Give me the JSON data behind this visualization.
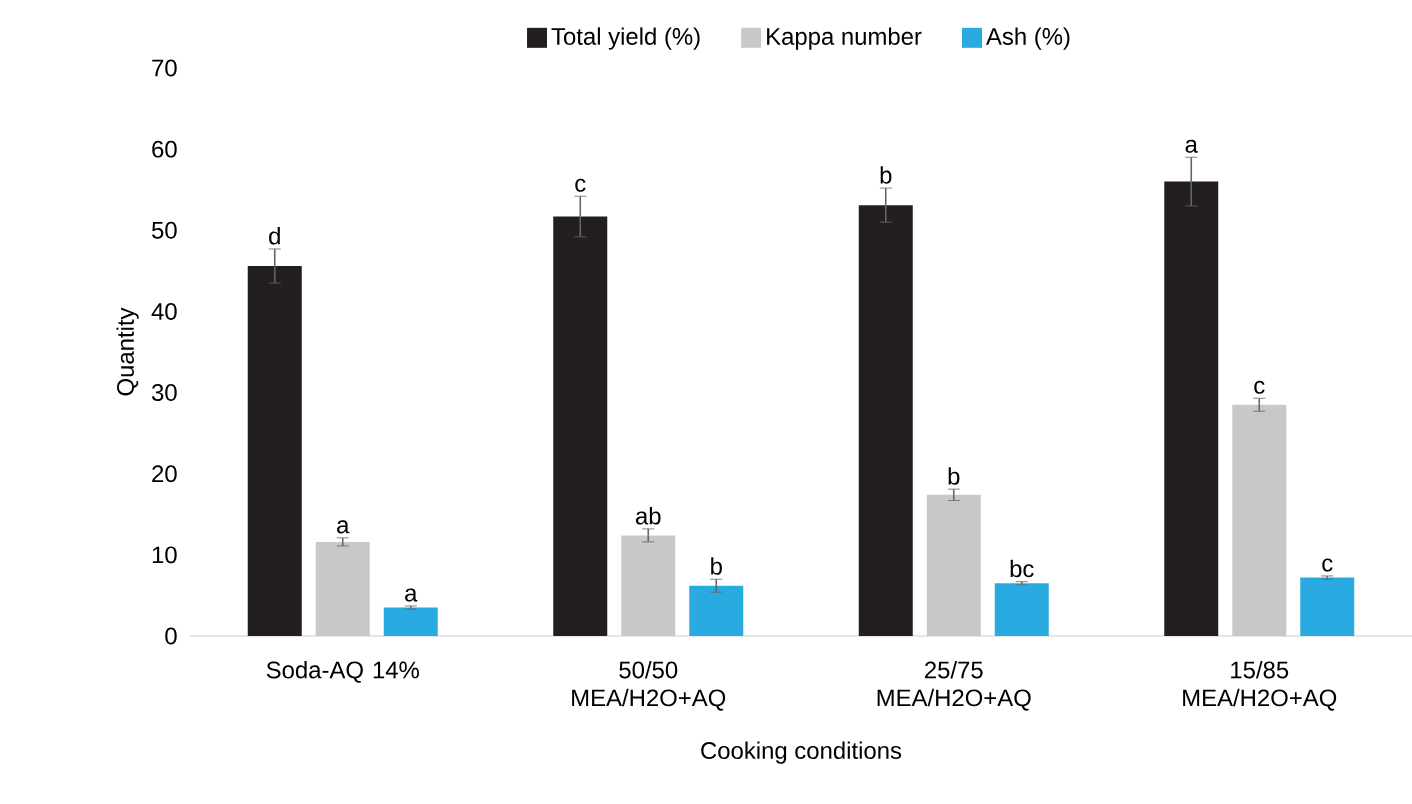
{
  "chart_data": {
    "type": "bar",
    "xlabel": "Cooking conditions",
    "ylabel": "Quantity",
    "categories": [
      "Soda-AQ 14%",
      "50/50 MEA/H2O+AQ",
      "25/75 MEA/H2O+AQ",
      "15/85 MEA/H2O+AQ"
    ],
    "series": [
      {
        "name": "Total yield (%)",
        "color": "#231f20",
        "values": [
          45.6,
          51.7,
          53.1,
          56.0
        ],
        "errors": [
          2.1,
          2.5,
          2.1,
          3.0
        ]
      },
      {
        "name": "Kappa number",
        "color": "#c8c8ca",
        "values": [
          11.6,
          12.4,
          17.4,
          28.5
        ],
        "errors": [
          0.5,
          0.8,
          0.7,
          0.8
        ]
      },
      {
        "name": "Ash (%)",
        "color": "#29abe2",
        "values": [
          3.5,
          6.2,
          6.5,
          7.2
        ],
        "errors": [
          0.2,
          0.8,
          0.2,
          0.2
        ]
      }
    ],
    "ylim": [
      0,
      70
    ],
    "yticks": [
      0,
      10,
      20,
      30,
      40,
      50,
      60,
      70
    ],
    "grid": false,
    "legend": "top",
    "annotations": [
      "d",
      "a",
      "a",
      "c",
      "ab",
      "b",
      "b",
      "b",
      "bc",
      "a",
      "c",
      "c"
    ]
  }
}
